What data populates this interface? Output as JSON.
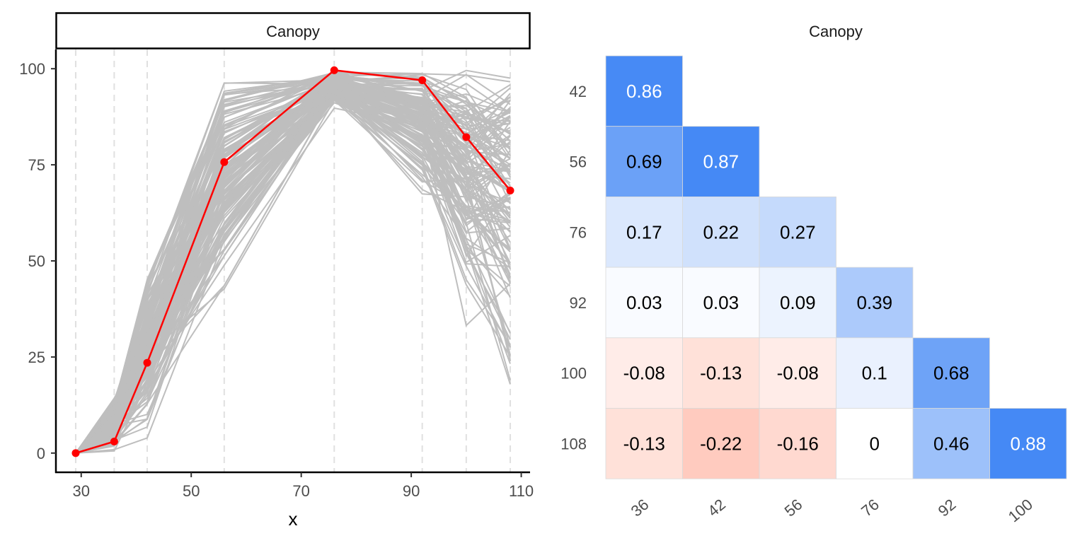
{
  "chart_data": [
    {
      "type": "line",
      "facet_label": "Canopy",
      "xlabel": "x",
      "ylabel": "",
      "x_ticks": [
        30,
        50,
        70,
        90,
        110
      ],
      "y_ticks": [
        0,
        25,
        50,
        75,
        100
      ],
      "xlim": [
        25.4,
        111.6
      ],
      "ylim": [
        -5,
        105
      ],
      "x_vlines": [
        29,
        36,
        42,
        56,
        76,
        92,
        100,
        108
      ],
      "highlight_series": {
        "color": "#ff0000",
        "x": [
          29,
          36,
          42,
          56,
          76,
          92,
          100,
          108
        ],
        "y": [
          0,
          3,
          23.5,
          75.7,
          99.6,
          97,
          82.2,
          68.3
        ]
      },
      "background_series_color": "#bebebe",
      "background_envelope": {
        "x": [
          29,
          36,
          42,
          56,
          76,
          92,
          100,
          108
        ],
        "y_min": [
          0,
          0,
          0.5,
          33,
          89,
          62,
          25,
          6.5
        ],
        "y_max": [
          0,
          15,
          47,
          99,
          100,
          100,
          100,
          98.7
        ]
      },
      "grid": false
    },
    {
      "type": "heatmap",
      "title": "Canopy",
      "row_labels": [
        "42",
        "56",
        "76",
        "92",
        "100",
        "108"
      ],
      "col_labels": [
        "36",
        "42",
        "56",
        "76",
        "92",
        "100"
      ],
      "color_scale": {
        "low": "#ff3300",
        "mid": "#ffffff",
        "high": "#4589f5"
      },
      "values": [
        [
          0.86,
          null,
          null,
          null,
          null,
          null
        ],
        [
          0.69,
          0.87,
          null,
          null,
          null,
          null
        ],
        [
          0.17,
          0.22,
          0.27,
          null,
          null,
          null
        ],
        [
          0.03,
          0.03,
          0.09,
          0.39,
          null,
          null
        ],
        [
          -0.08,
          -0.13,
          -0.08,
          0.1,
          0.68,
          null
        ],
        [
          -0.13,
          -0.22,
          -0.16,
          0,
          0.46,
          0.88
        ]
      ]
    }
  ]
}
